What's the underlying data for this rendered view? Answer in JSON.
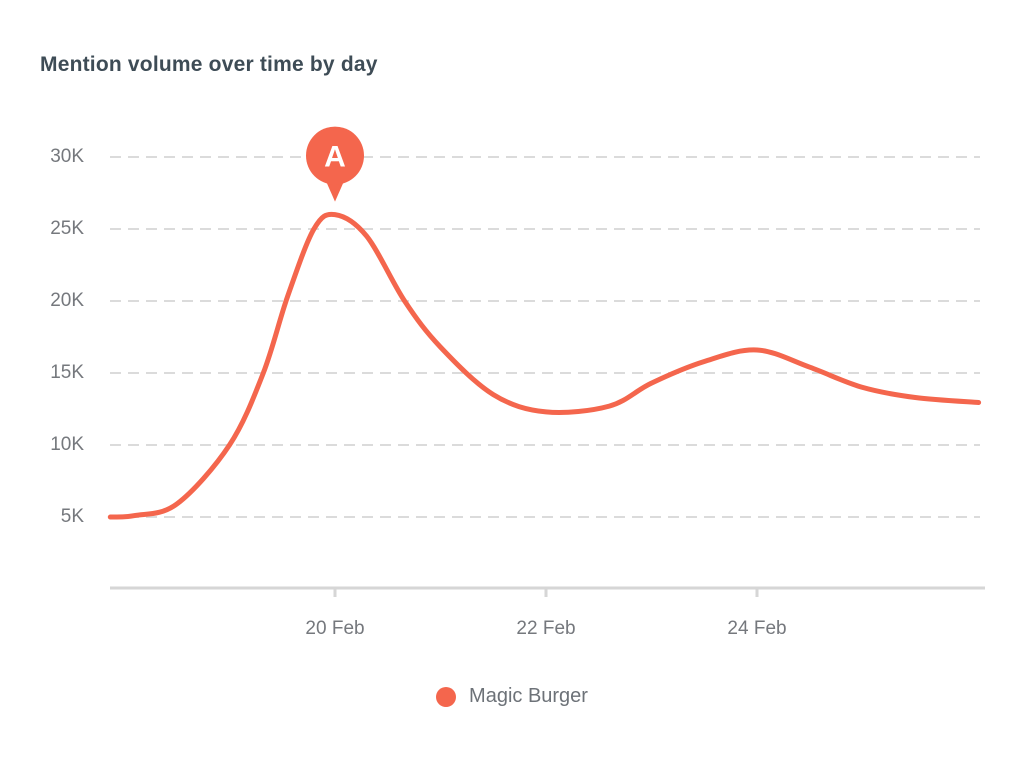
{
  "chart": {
    "title": "Mention volume over time by day",
    "colors": {
      "accent": "#f4664d",
      "title_text": "#3e4c56",
      "axis_text": "#75787d",
      "legend_text": "#6d7278",
      "gridline": "#dbdbdb",
      "axis_line": "#d6d6d6",
      "background": "#ffffff"
    },
    "y_axis": {
      "ticks": [
        {
          "value_k": 30,
          "label": "30K"
        },
        {
          "value_k": 25,
          "label": "25K"
        },
        {
          "value_k": 20,
          "label": "20K"
        },
        {
          "value_k": 15,
          "label": "15K"
        },
        {
          "value_k": 10,
          "label": "10K"
        },
        {
          "value_k": 5,
          "label": "5K"
        }
      ]
    },
    "x_axis": {
      "ticks": [
        {
          "day": 20,
          "label": "20 Feb"
        },
        {
          "day": 22,
          "label": "22 Feb"
        },
        {
          "day": 24,
          "label": "24 Feb"
        }
      ]
    },
    "annotation": {
      "label": "A",
      "day": 20,
      "value_k": 26
    },
    "legend": [
      {
        "label": "Magic Burger",
        "color": "#f4664d"
      }
    ]
  },
  "chart_data": {
    "type": "line",
    "title": "Mention volume over time by day",
    "xlabel": "",
    "ylabel": "",
    "x_tick_labels": [
      "20 Feb",
      "22 Feb",
      "24 Feb"
    ],
    "y_tick_labels": [
      "5K",
      "10K",
      "15K",
      "20K",
      "25K",
      "30K"
    ],
    "ylim": [
      0,
      32500
    ],
    "x_range_days_feb": [
      18,
      26
    ],
    "grid": "horizontal-dashed",
    "legend_position": "bottom",
    "smoothing": "spline",
    "series": [
      {
        "name": "Magic Burger",
        "color": "#f4664d",
        "daily_points": [
          {
            "date": "18 Feb",
            "mentions": 5100
          },
          {
            "date": "19 Feb",
            "mentions": 10000
          },
          {
            "date": "20 Feb",
            "mentions": 26000
          },
          {
            "date": "21 Feb",
            "mentions": 16800
          },
          {
            "date": "22 Feb",
            "mentions": 12300
          },
          {
            "date": "23 Feb",
            "mentions": 14300
          },
          {
            "date": "24 Feb",
            "mentions": 16500
          },
          {
            "date": "25 Feb",
            "mentions": 14000
          },
          {
            "date": "26 Feb",
            "mentions": 13000
          }
        ],
        "curve_samples_day_valueK": [
          [
            17.87,
            5.0
          ],
          [
            18.1,
            5.1
          ],
          [
            18.5,
            5.9
          ],
          [
            19.0,
            10.0
          ],
          [
            19.32,
            15.0
          ],
          [
            19.55,
            20.3
          ],
          [
            19.8,
            25.0
          ],
          [
            20.0,
            26.0
          ],
          [
            20.3,
            24.5
          ],
          [
            20.66,
            20.0
          ],
          [
            21.0,
            16.8
          ],
          [
            21.5,
            13.5
          ],
          [
            22.0,
            12.3
          ],
          [
            22.6,
            12.7
          ],
          [
            23.0,
            14.3
          ],
          [
            23.5,
            15.8
          ],
          [
            24.0,
            16.6
          ],
          [
            24.5,
            15.4
          ],
          [
            25.0,
            14.0
          ],
          [
            25.5,
            13.3
          ],
          [
            26.1,
            12.95
          ]
        ]
      }
    ],
    "annotations": [
      {
        "label": "A",
        "date": "20 Feb",
        "value": 26000
      }
    ]
  }
}
